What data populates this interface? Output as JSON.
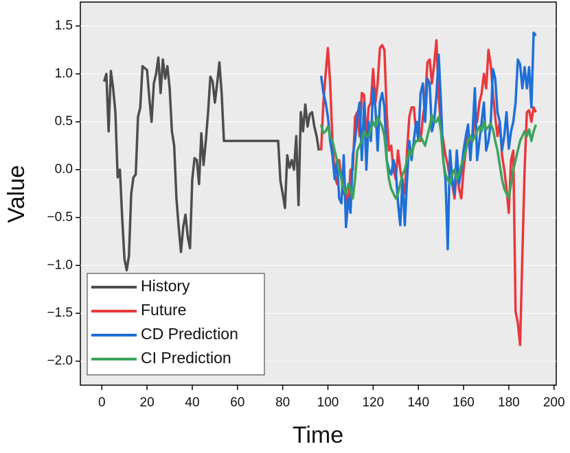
{
  "chart_data": {
    "type": "line",
    "x_label": "Time",
    "y_label": "Value",
    "xlim": [
      -9.5,
      201
    ],
    "ylim": [
      -2.25,
      1.75
    ],
    "xticks": [
      0,
      20,
      40,
      60,
      80,
      100,
      120,
      140,
      160,
      180,
      200
    ],
    "yticks": [
      {
        "value": -2,
        "label": "−2.0"
      },
      {
        "value": -1.5,
        "label": "−1.5"
      },
      {
        "value": -1,
        "label": "−1.0"
      },
      {
        "value": -0.5,
        "label": "−0.5"
      },
      {
        "value": 0,
        "label": "0.0"
      },
      0.5,
      {
        "value": 1,
        "label": "1.0"
      },
      1.5
    ],
    "grid": true,
    "legend": "lower-left",
    "series": [
      {
        "name": "History",
        "color": "#4d4d4d",
        "x": [
          1,
          2,
          3,
          4,
          5,
          6,
          7,
          8,
          9,
          10,
          11,
          12,
          13,
          14,
          15,
          16,
          17,
          18,
          19,
          20,
          21,
          22,
          23,
          24,
          25,
          26,
          27,
          28,
          29,
          30,
          31,
          32,
          33,
          34,
          35,
          36,
          37,
          38,
          39,
          40,
          41,
          42,
          43,
          44,
          45,
          46,
          47,
          48,
          49,
          50,
          51,
          52,
          53,
          54,
          78,
          79,
          80,
          81,
          82,
          83,
          84,
          85,
          86,
          87,
          88,
          89,
          90,
          91,
          92,
          93,
          94,
          95,
          96
        ],
        "values": [
          0.92,
          1.0,
          0.4,
          1.03,
          0.85,
          0.6,
          -0.08,
          0.0,
          -0.5,
          -0.93,
          -1.05,
          -0.9,
          -0.25,
          -0.08,
          -0.05,
          0.55,
          0.65,
          1.08,
          1.06,
          1.04,
          0.75,
          0.5,
          0.9,
          1.0,
          1.17,
          0.8,
          1.15,
          0.95,
          1.08,
          0.85,
          0.4,
          0.25,
          -0.3,
          -0.6,
          -0.86,
          -0.6,
          -0.47,
          -0.7,
          -0.82,
          -0.1,
          0.12,
          0.1,
          -0.15,
          0.38,
          0.05,
          0.3,
          0.6,
          0.97,
          0.92,
          0.7,
          0.9,
          1.12,
          0.8,
          0.3,
          0.3,
          -0.12,
          -0.25,
          -0.4,
          0.15,
          0.02,
          0.1,
          0.0,
          0.35,
          -0.37,
          0.6,
          0.4,
          0.68,
          0.45,
          0.58,
          0.6,
          0.45,
          0.35,
          0.2
        ]
      },
      {
        "name": "Future",
        "color": "#e8383d",
        "x": [
          97,
          98,
          99,
          100,
          101,
          102,
          103,
          104,
          105,
          106,
          107,
          108,
          109,
          110,
          111,
          112,
          113,
          114,
          115,
          116,
          117,
          118,
          119,
          120,
          121,
          122,
          123,
          124,
          125,
          126,
          127,
          128,
          129,
          130,
          131,
          132,
          133,
          134,
          135,
          136,
          137,
          138,
          139,
          140,
          141,
          142,
          143,
          144,
          145,
          146,
          147,
          148,
          149,
          150,
          151,
          152,
          153,
          154,
          155,
          156,
          157,
          158,
          159,
          160,
          161,
          162,
          163,
          164,
          165,
          166,
          167,
          168,
          169,
          170,
          171,
          172,
          173,
          174,
          175,
          176,
          177,
          178,
          179,
          180,
          181,
          182,
          183,
          184,
          185,
          186,
          187,
          188,
          189,
          190,
          191,
          192
        ],
        "values": [
          0.2,
          0.7,
          1.0,
          1.27,
          0.9,
          0.3,
          -0.05,
          -0.15,
          0.1,
          -0.1,
          -0.25,
          -0.2,
          -0.4,
          0.0,
          0.0,
          0.55,
          0.6,
          0.35,
          0.8,
          0.78,
          0.3,
          0.65,
          0.7,
          1.05,
          0.7,
          0.9,
          1.27,
          1.3,
          1.25,
          0.6,
          0.2,
          0.25,
          0.0,
          -0.1,
          0.2,
          0.0,
          -0.15,
          -0.25,
          0.2,
          0.55,
          0.65,
          0.65,
          0.4,
          0.5,
          0.3,
          0.55,
          0.7,
          1.12,
          1.15,
          0.9,
          1.1,
          1.35,
          0.75,
          0.45,
          0.3,
          0.15,
          0.05,
          -0.1,
          -0.15,
          -0.3,
          0.0,
          -0.2,
          -0.3,
          0.0,
          0.2,
          0.4,
          0.3,
          0.3,
          0.6,
          0.5,
          0.7,
          0.8,
          1.0,
          0.85,
          1.25,
          1.1,
          0.8,
          0.55,
          0.35,
          0.5,
          0.15,
          0.0,
          -0.2,
          -0.45,
          0.1,
          0.2,
          -1.48,
          -1.6,
          -1.83,
          -0.9,
          0.0,
          0.6,
          0.62,
          0.5,
          0.65,
          0.6
        ]
      },
      {
        "name": "CD Prediction",
        "color": "#1f6fd6",
        "x": [
          97,
          98,
          99,
          100,
          101,
          102,
          103,
          104,
          105,
          106,
          107,
          108,
          109,
          110,
          111,
          112,
          113,
          114,
          115,
          116,
          117,
          118,
          119,
          120,
          121,
          122,
          123,
          124,
          125,
          126,
          127,
          128,
          129,
          130,
          131,
          132,
          133,
          134,
          135,
          136,
          137,
          138,
          139,
          140,
          141,
          142,
          143,
          144,
          145,
          146,
          147,
          148,
          149,
          150,
          151,
          152,
          153,
          154,
          155,
          156,
          157,
          158,
          159,
          160,
          161,
          162,
          163,
          164,
          165,
          166,
          167,
          168,
          169,
          170,
          171,
          172,
          173,
          174,
          175,
          176,
          177,
          178,
          179,
          180,
          181,
          182,
          183,
          184,
          185,
          186,
          187,
          188,
          189,
          190,
          191,
          192
        ],
        "values": [
          0.98,
          0.8,
          0.7,
          0.55,
          0.3,
          0.15,
          -0.1,
          0.1,
          -0.3,
          -0.35,
          0.15,
          -0.6,
          -0.3,
          -0.45,
          0.15,
          0.3,
          0.55,
          0.7,
          0.1,
          0.7,
          0.0,
          0.5,
          0.3,
          0.85,
          0.65,
          0.2,
          0.7,
          0.8,
          0.65,
          0.1,
          0.0,
          -0.05,
          0.1,
          0.0,
          -0.35,
          -0.58,
          -0.1,
          -0.58,
          -0.1,
          0.3,
          0.1,
          0.3,
          0.5,
          0.3,
          0.8,
          0.9,
          0.5,
          0.95,
          0.9,
          0.4,
          0.5,
          0.78,
          1.2,
          0.7,
          0.1,
          -0.1,
          -0.83,
          0.2,
          -0.1,
          -0.25,
          0.2,
          -0.15,
          0.0,
          0.2,
          0.35,
          0.47,
          0.1,
          0.4,
          0.85,
          0.1,
          0.3,
          0.5,
          0.7,
          0.2,
          0.3,
          0.48,
          1.05,
          0.95,
          0.6,
          0.5,
          0.2,
          0.35,
          0.6,
          0.22,
          0.4,
          0.5,
          0.7,
          1.15,
          1.1,
          0.85,
          1.07,
          0.85,
          1.07,
          0.65,
          1.43,
          1.4
        ]
      },
      {
        "name": "CI Prediction",
        "color": "#3aa45a",
        "x": [
          97,
          98,
          99,
          100,
          101,
          102,
          103,
          104,
          105,
          106,
          107,
          108,
          109,
          110,
          111,
          112,
          113,
          114,
          115,
          116,
          117,
          118,
          119,
          120,
          121,
          122,
          123,
          124,
          125,
          126,
          127,
          128,
          129,
          130,
          131,
          132,
          133,
          134,
          135,
          136,
          137,
          138,
          139,
          140,
          141,
          142,
          143,
          144,
          145,
          146,
          147,
          148,
          149,
          150,
          151,
          152,
          153,
          154,
          155,
          156,
          157,
          158,
          159,
          160,
          161,
          162,
          163,
          164,
          165,
          166,
          167,
          168,
          169,
          170,
          171,
          172,
          173,
          174,
          175,
          176,
          177,
          178,
          179,
          180,
          181,
          182,
          183,
          184,
          185,
          186,
          187,
          188,
          189,
          190,
          191,
          192
        ],
        "values": [
          0.47,
          0.38,
          0.4,
          0.45,
          0.35,
          0.3,
          0.2,
          0.1,
          0.0,
          -0.1,
          -0.2,
          -0.25,
          -0.15,
          -0.2,
          -0.3,
          -0.1,
          0.2,
          0.25,
          0.3,
          0.4,
          0.35,
          0.35,
          0.42,
          0.5,
          0.45,
          0.55,
          0.5,
          0.45,
          0.35,
          0.1,
          -0.1,
          -0.2,
          -0.25,
          -0.3,
          -0.25,
          -0.15,
          -0.05,
          0.0,
          0.1,
          0.2,
          0.15,
          0.25,
          0.3,
          0.3,
          0.35,
          0.3,
          0.25,
          0.35,
          0.45,
          0.57,
          0.5,
          0.5,
          0.55,
          0.4,
          0.1,
          -0.05,
          -0.1,
          -0.15,
          -0.05,
          0.0,
          -0.1,
          -0.05,
          0.05,
          0.1,
          0.2,
          0.3,
          0.35,
          0.3,
          0.35,
          0.4,
          0.45,
          0.4,
          0.5,
          0.42,
          0.45,
          0.48,
          0.42,
          0.3,
          0.2,
          0.05,
          -0.1,
          -0.2,
          -0.25,
          -0.3,
          -0.15,
          0.0,
          0.1,
          0.2,
          0.3,
          0.35,
          0.4,
          0.35,
          0.42,
          0.3,
          0.4,
          0.47
        ]
      }
    ]
  }
}
